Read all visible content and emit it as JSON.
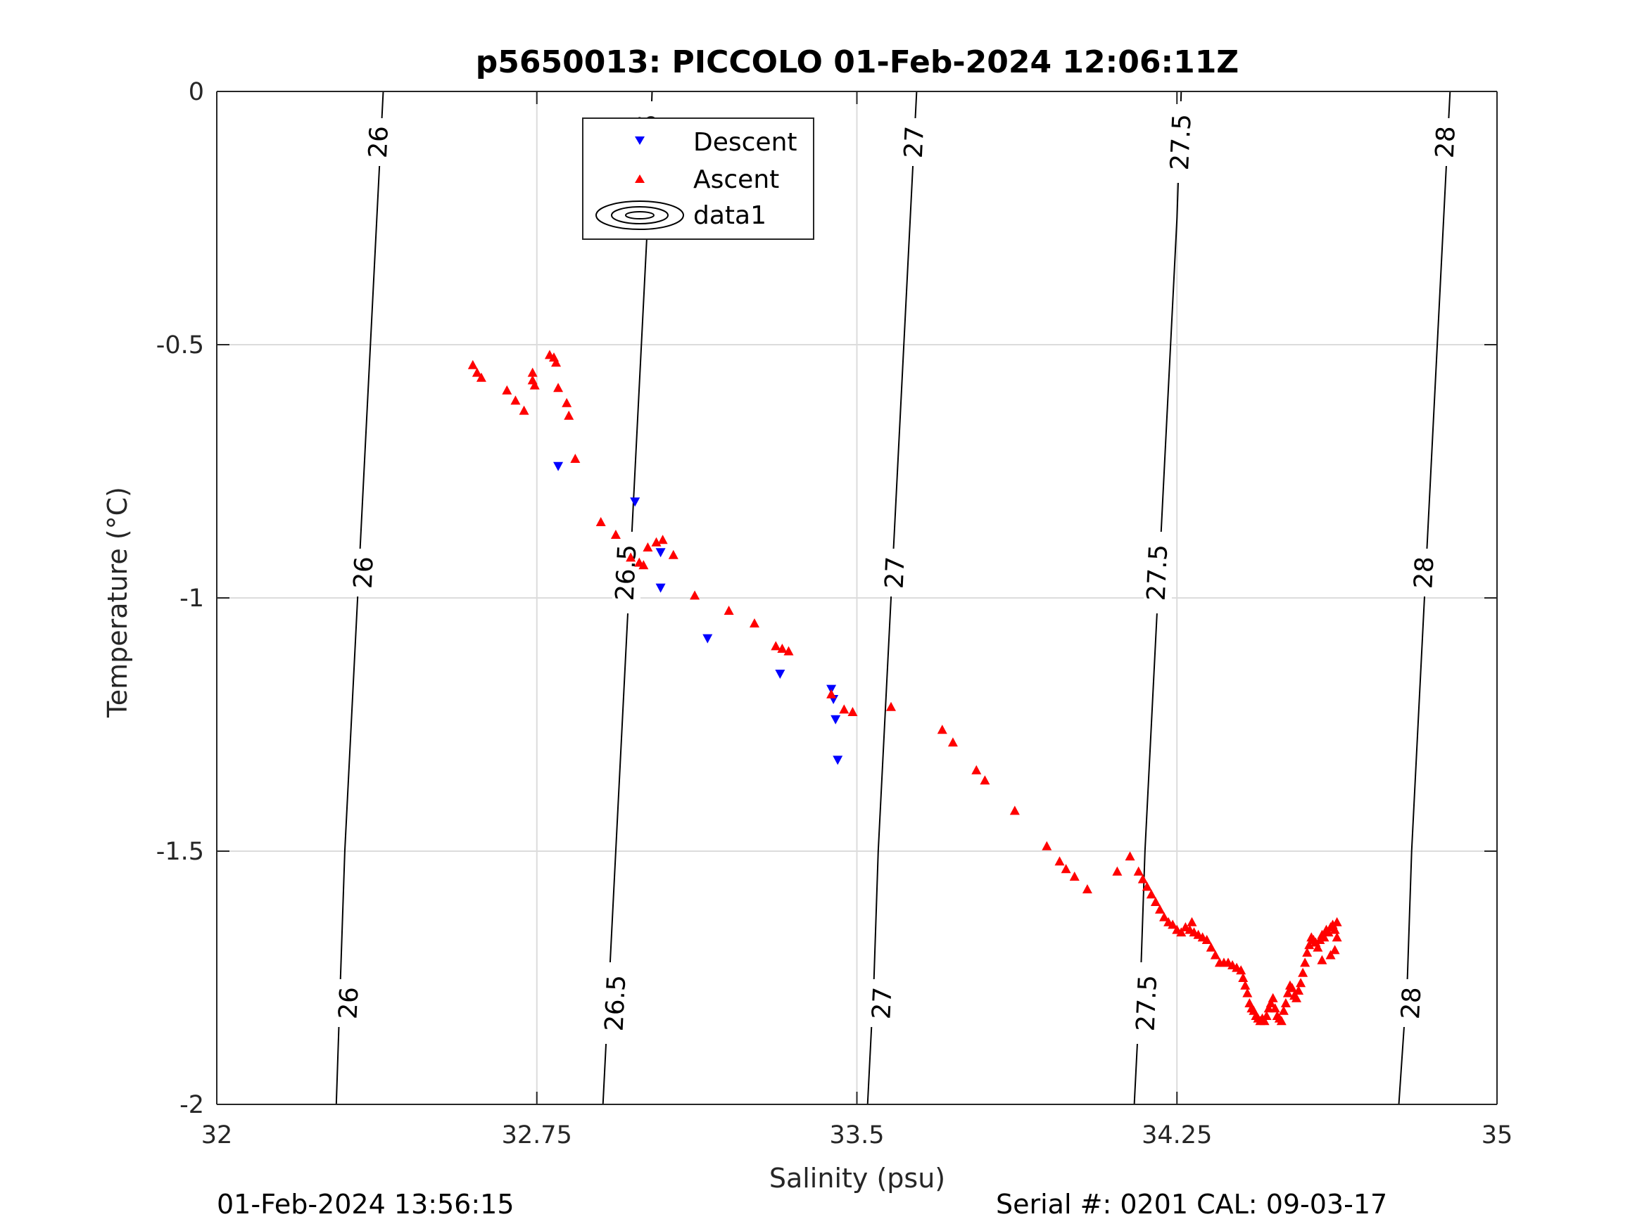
{
  "chart_data": {
    "type": "scatter",
    "title": "p5650013: PICCOLO 01-Feb-2024 12:06:11Z",
    "xlabel": "Salinity (psu)",
    "ylabel": "Temperature (°C)",
    "xlim": [
      32,
      35
    ],
    "ylim": [
      -2,
      0
    ],
    "xticks": [
      32,
      32.75,
      33.5,
      34.25,
      35
    ],
    "xtick_labels": [
      "32",
      "32.75",
      "33.5",
      "34.25",
      "35"
    ],
    "yticks": [
      0,
      -0.5,
      -1,
      -1.5,
      -2
    ],
    "ytick_labels": [
      "0",
      "-0.5",
      "-1",
      "-1.5",
      "-2"
    ],
    "grid": true,
    "legend": {
      "placement": "top-center",
      "entries": [
        "Descent",
        "Ascent",
        "data1"
      ]
    },
    "colors": {
      "descent": "#0000ff",
      "ascent": "#ff0000",
      "contour": "#000000",
      "grid": "#dcdcdc"
    },
    "series": [
      {
        "name": "Descent",
        "marker": "triangle-down",
        "points": [
          [
            32.8,
            -0.74
          ],
          [
            32.98,
            -0.81
          ],
          [
            33.04,
            -0.91
          ],
          [
            33.04,
            -0.98
          ],
          [
            33.15,
            -1.08
          ],
          [
            33.32,
            -1.15
          ],
          [
            33.44,
            -1.18
          ],
          [
            33.445,
            -1.2
          ],
          [
            33.45,
            -1.24
          ],
          [
            33.455,
            -1.32
          ]
        ]
      },
      {
        "name": "Ascent",
        "marker": "triangle-up",
        "points": [
          [
            32.6,
            -0.54
          ],
          [
            32.61,
            -0.555
          ],
          [
            32.62,
            -0.565
          ],
          [
            32.68,
            -0.59
          ],
          [
            32.7,
            -0.61
          ],
          [
            32.72,
            -0.63
          ],
          [
            32.74,
            -0.555
          ],
          [
            32.74,
            -0.57
          ],
          [
            32.745,
            -0.58
          ],
          [
            32.78,
            -0.52
          ],
          [
            32.79,
            -0.525
          ],
          [
            32.795,
            -0.535
          ],
          [
            32.8,
            -0.585
          ],
          [
            32.82,
            -0.615
          ],
          [
            32.825,
            -0.64
          ],
          [
            32.84,
            -0.725
          ],
          [
            32.9,
            -0.85
          ],
          [
            32.935,
            -0.875
          ],
          [
            32.97,
            -0.92
          ],
          [
            32.99,
            -0.93
          ],
          [
            33.0,
            -0.935
          ],
          [
            33.01,
            -0.9
          ],
          [
            33.03,
            -0.89
          ],
          [
            33.045,
            -0.885
          ],
          [
            33.07,
            -0.915
          ],
          [
            33.12,
            -0.995
          ],
          [
            33.2,
            -1.025
          ],
          [
            33.26,
            -1.05
          ],
          [
            33.31,
            -1.095
          ],
          [
            33.325,
            -1.1
          ],
          [
            33.34,
            -1.105
          ],
          [
            33.44,
            -1.19
          ],
          [
            33.47,
            -1.22
          ],
          [
            33.49,
            -1.225
          ],
          [
            33.58,
            -1.215
          ],
          [
            33.7,
            -1.26
          ],
          [
            33.725,
            -1.285
          ],
          [
            33.78,
            -1.34
          ],
          [
            33.8,
            -1.36
          ],
          [
            33.87,
            -1.42
          ],
          [
            33.945,
            -1.49
          ],
          [
            33.975,
            -1.52
          ],
          [
            33.99,
            -1.535
          ],
          [
            34.01,
            -1.55
          ],
          [
            34.04,
            -1.575
          ],
          [
            34.11,
            -1.54
          ],
          [
            34.14,
            -1.51
          ],
          [
            34.16,
            -1.54
          ],
          [
            34.17,
            -1.555
          ],
          [
            34.18,
            -1.57
          ],
          [
            34.19,
            -1.585
          ],
          [
            34.2,
            -1.6
          ],
          [
            34.21,
            -1.615
          ],
          [
            34.22,
            -1.63
          ],
          [
            34.23,
            -1.64
          ],
          [
            34.24,
            -1.645
          ],
          [
            34.25,
            -1.655
          ],
          [
            34.26,
            -1.66
          ],
          [
            34.27,
            -1.65
          ],
          [
            34.28,
            -1.655
          ],
          [
            34.285,
            -1.64
          ],
          [
            34.29,
            -1.66
          ],
          [
            34.3,
            -1.665
          ],
          [
            34.31,
            -1.67
          ],
          [
            34.32,
            -1.675
          ],
          [
            34.33,
            -1.69
          ],
          [
            34.34,
            -1.705
          ],
          [
            34.35,
            -1.72
          ],
          [
            34.36,
            -1.72
          ],
          [
            34.37,
            -1.72
          ],
          [
            34.38,
            -1.725
          ],
          [
            34.39,
            -1.73
          ],
          [
            34.4,
            -1.735
          ],
          [
            34.405,
            -1.75
          ],
          [
            34.41,
            -1.765
          ],
          [
            34.415,
            -1.78
          ],
          [
            34.42,
            -1.8
          ],
          [
            34.425,
            -1.81
          ],
          [
            34.43,
            -1.815
          ],
          [
            34.435,
            -1.825
          ],
          [
            34.44,
            -1.83
          ],
          [
            34.445,
            -1.835
          ],
          [
            34.45,
            -1.83
          ],
          [
            34.455,
            -1.835
          ],
          [
            34.46,
            -1.825
          ],
          [
            34.465,
            -1.81
          ],
          [
            34.47,
            -1.8
          ],
          [
            34.475,
            -1.79
          ],
          [
            34.48,
            -1.81
          ],
          [
            34.485,
            -1.825
          ],
          [
            34.49,
            -1.83
          ],
          [
            34.495,
            -1.835
          ],
          [
            34.5,
            -1.815
          ],
          [
            34.505,
            -1.8
          ],
          [
            34.51,
            -1.78
          ],
          [
            34.515,
            -1.765
          ],
          [
            34.52,
            -1.77
          ],
          [
            34.525,
            -1.785
          ],
          [
            34.53,
            -1.79
          ],
          [
            34.535,
            -1.775
          ],
          [
            34.54,
            -1.76
          ],
          [
            34.545,
            -1.74
          ],
          [
            34.55,
            -1.72
          ],
          [
            34.555,
            -1.7
          ],
          [
            34.56,
            -1.685
          ],
          [
            34.565,
            -1.67
          ],
          [
            34.57,
            -1.675
          ],
          [
            34.575,
            -1.68
          ],
          [
            34.58,
            -1.69
          ],
          [
            34.585,
            -1.675
          ],
          [
            34.59,
            -1.665
          ],
          [
            34.595,
            -1.67
          ],
          [
            34.6,
            -1.655
          ],
          [
            34.605,
            -1.66
          ],
          [
            34.61,
            -1.65
          ],
          [
            34.615,
            -1.645
          ],
          [
            34.62,
            -1.655
          ],
          [
            34.625,
            -1.64
          ],
          [
            34.625,
            -1.67
          ],
          [
            34.62,
            -1.695
          ],
          [
            34.61,
            -1.705
          ],
          [
            34.59,
            -1.715
          ]
        ]
      }
    ],
    "contours": [
      {
        "level": "26",
        "points": [
          [
            32.39,
            0
          ],
          [
            32.375,
            -0.25
          ],
          [
            32.36,
            -0.5
          ],
          [
            32.345,
            -0.75
          ],
          [
            32.33,
            -1
          ],
          [
            32.315,
            -1.25
          ],
          [
            32.3,
            -1.5
          ],
          [
            32.29,
            -1.75
          ],
          [
            32.28,
            -2
          ]
        ],
        "labels": [
          [
            32.38,
            -0.1
          ],
          [
            32.345,
            -0.95
          ],
          [
            32.31,
            -1.8
          ]
        ]
      },
      {
        "level": "26.5",
        "points": [
          [
            33.02,
            0
          ],
          [
            33.01,
            -0.25
          ],
          [
            32.995,
            -0.5
          ],
          [
            32.98,
            -0.75
          ],
          [
            32.965,
            -1
          ],
          [
            32.95,
            -1.25
          ],
          [
            32.935,
            -1.5
          ],
          [
            32.92,
            -1.75
          ],
          [
            32.905,
            -2
          ]
        ],
        "labels": [
          [
            33.01,
            -0.1
          ],
          [
            32.96,
            -0.95
          ],
          [
            32.935,
            -1.8
          ]
        ]
      },
      {
        "level": "27",
        "points": [
          [
            33.64,
            0
          ],
          [
            33.625,
            -0.25
          ],
          [
            33.61,
            -0.5
          ],
          [
            33.595,
            -0.75
          ],
          [
            33.58,
            -1
          ],
          [
            33.565,
            -1.25
          ],
          [
            33.55,
            -1.5
          ],
          [
            33.54,
            -1.75
          ],
          [
            33.525,
            -2
          ]
        ],
        "labels": [
          [
            33.635,
            -0.1
          ],
          [
            33.59,
            -0.95
          ],
          [
            33.56,
            -1.8
          ]
        ]
      },
      {
        "level": "27.5",
        "points": [
          [
            34.26,
            0
          ],
          [
            34.25,
            -0.25
          ],
          [
            34.235,
            -0.5
          ],
          [
            34.22,
            -0.75
          ],
          [
            34.205,
            -1
          ],
          [
            34.19,
            -1.25
          ],
          [
            34.175,
            -1.5
          ],
          [
            34.165,
            -1.75
          ],
          [
            34.15,
            -2
          ]
        ],
        "labels": [
          [
            34.26,
            -0.1
          ],
          [
            34.205,
            -0.95
          ],
          [
            34.18,
            -1.8
          ]
        ]
      },
      {
        "level": "28",
        "points": [
          [
            34.89,
            0
          ],
          [
            34.875,
            -0.25
          ],
          [
            34.86,
            -0.5
          ],
          [
            34.845,
            -0.75
          ],
          [
            34.83,
            -1
          ],
          [
            34.815,
            -1.25
          ],
          [
            34.8,
            -1.5
          ],
          [
            34.79,
            -1.75
          ],
          [
            34.77,
            -2
          ]
        ],
        "labels": [
          [
            34.88,
            -0.1
          ],
          [
            34.83,
            -0.95
          ],
          [
            34.8,
            -1.8
          ]
        ]
      }
    ]
  },
  "footer": {
    "timestamp": "01-Feb-2024 13:56:15",
    "serial": "Serial #: 0201  CAL: 09-03-17"
  }
}
